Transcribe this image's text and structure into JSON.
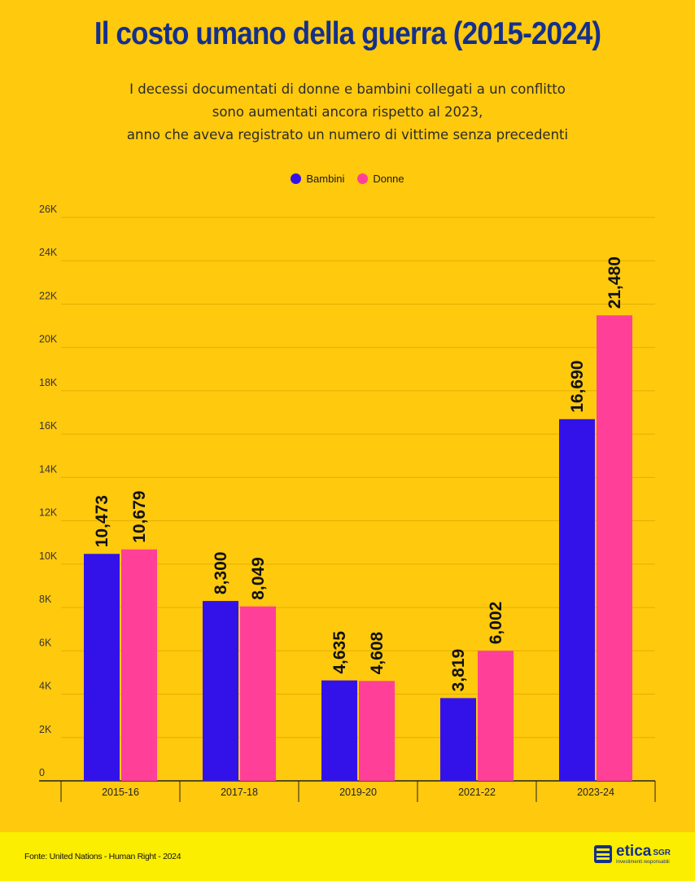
{
  "title": "Il costo umano della guerra (2015-2024)",
  "subtitle": [
    "I decessi documentati di donne e bambini collegati a un conflitto",
    "sono aumentati ancora rispetto al 2023,",
    "anno che aveva registrato un numero di vittime senza precedenti"
  ],
  "legend": [
    {
      "name": "Bambini",
      "color": "#3312ea"
    },
    {
      "name": "Donne",
      "color": "#ff3f98"
    }
  ],
  "chart_data": {
    "type": "bar",
    "categories": [
      "2015-16",
      "2017-18",
      "2019-20",
      "2021-22",
      "2023-24"
    ],
    "series": [
      {
        "name": "Bambini",
        "color": "#3312ea",
        "values": [
          10473,
          8300,
          4635,
          3819,
          16690
        ],
        "labels": [
          "10,473",
          "8,300",
          "4,635",
          "3,819",
          "16,690"
        ]
      },
      {
        "name": "Donne",
        "color": "#ff3f98",
        "values": [
          10679,
          8049,
          4608,
          6002,
          21480
        ],
        "labels": [
          "10,679",
          "8,049",
          "4,608",
          "6,002",
          "21,480"
        ]
      }
    ],
    "ylim": [
      0,
      26000
    ],
    "yticks": [
      0,
      2000,
      4000,
      6000,
      8000,
      10000,
      12000,
      14000,
      16000,
      18000,
      20000,
      22000,
      24000,
      26000
    ],
    "ytick_labels": [
      "0",
      "2K",
      "4K",
      "6K",
      "8K",
      "10K",
      "12K",
      "14K",
      "16K",
      "18K",
      "20K",
      "22K",
      "24K",
      "26K"
    ],
    "grid": true,
    "legend_position": "top-center"
  },
  "footer": {
    "source": "Fonte: United Nations - Human Right - 2024",
    "brand_name": "etica",
    "brand_suffix": "SGR",
    "brand_tagline": "Investimenti responsabili"
  }
}
